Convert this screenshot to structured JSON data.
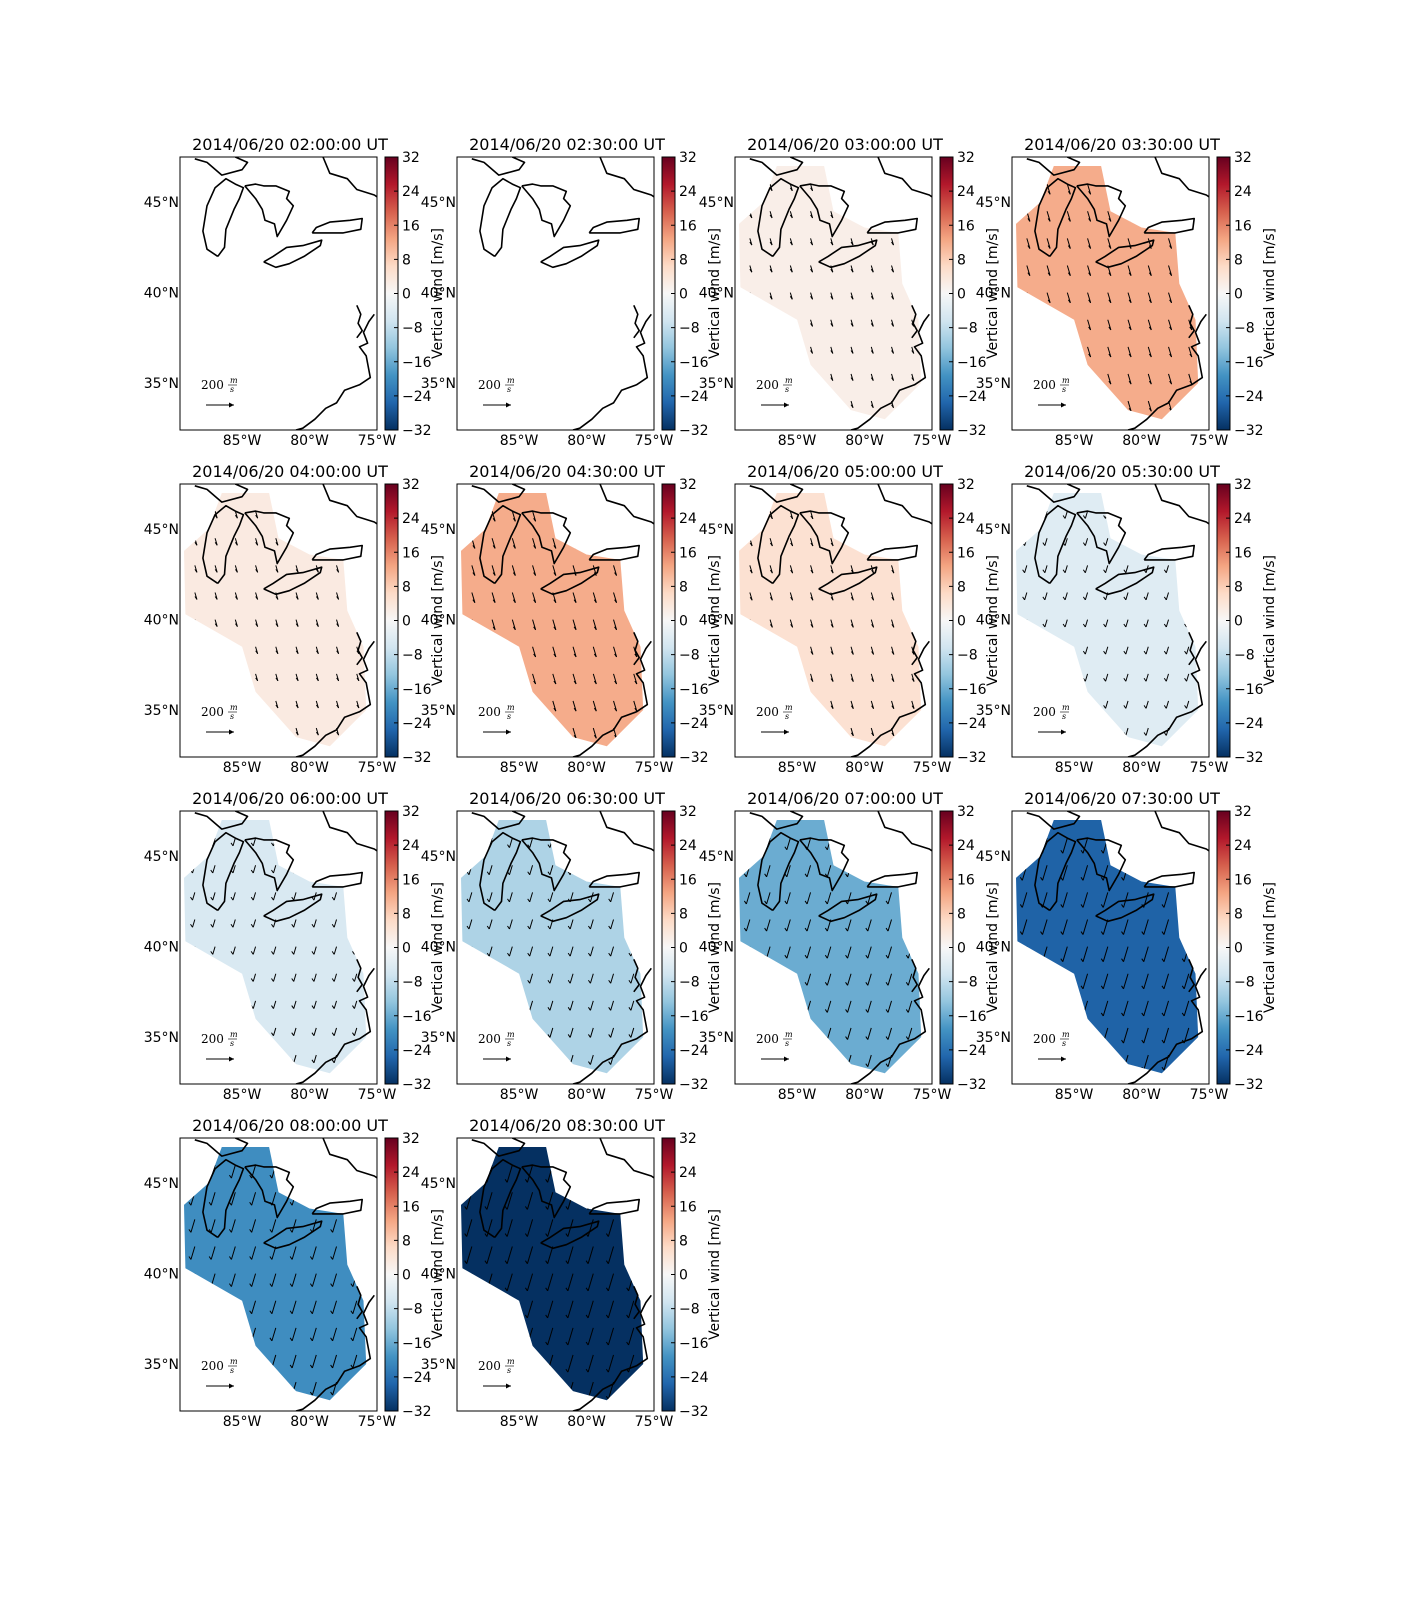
{
  "maps": {
    "lon_lim": [
      -89.6,
      -75
    ],
    "lat_lim": [
      32.4,
      47.5
    ],
    "lon_ticks": [
      {
        "value": -85,
        "label": "85°W"
      },
      {
        "value": -80,
        "label": "80°W"
      },
      {
        "value": -75,
        "label": "75°W"
      }
    ],
    "lat_ticks": [
      {
        "value": 45,
        "label": "45°N"
      },
      {
        "value": 40,
        "label": "40°N"
      },
      {
        "value": 35,
        "label": "35°N"
      }
    ],
    "colorbar": {
      "label": "Vertical wind [m/s]",
      "lim": [
        -32,
        32
      ],
      "ticks": [
        32,
        24,
        16,
        8,
        0,
        {
          "value": -8,
          "label": "−8"
        },
        {
          "value": -16,
          "label": "−16"
        },
        {
          "value": -24,
          "label": "−24"
        },
        {
          "value": -32,
          "label": "−32"
        }
      ]
    },
    "quiver_key": {
      "value": 200,
      "unit_numerator": "m",
      "unit_denominator": "s"
    },
    "panels": [
      {
        "title": "2014/06/20 02:00:00 UT",
        "vertical_wind": null
      },
      {
        "title": "2014/06/20 02:30:00 UT",
        "vertical_wind": null
      },
      {
        "title": "2014/06/20 03:00:00 UT",
        "vertical_wind": 2
      },
      {
        "title": "2014/06/20 03:30:00 UT",
        "vertical_wind": 12
      },
      {
        "title": "2014/06/20 04:00:00 UT",
        "vertical_wind": 3
      },
      {
        "title": "2014/06/20 04:30:00 UT",
        "vertical_wind": 12
      },
      {
        "title": "2014/06/20 05:00:00 UT",
        "vertical_wind": 5
      },
      {
        "title": "2014/06/20 05:30:00 UT",
        "vertical_wind": -4
      },
      {
        "title": "2014/06/20 06:00:00 UT",
        "vertical_wind": -5
      },
      {
        "title": "2014/06/20 06:30:00 UT",
        "vertical_wind": -10
      },
      {
        "title": "2014/06/20 07:00:00 UT",
        "vertical_wind": -16
      },
      {
        "title": "2014/06/20 07:30:00 UT",
        "vertical_wind": -26
      },
      {
        "title": "2014/06/20 08:00:00 UT",
        "vertical_wind": -20
      },
      {
        "title": "2014/06/20 08:30:00 UT",
        "vertical_wind": -32
      }
    ]
  }
}
